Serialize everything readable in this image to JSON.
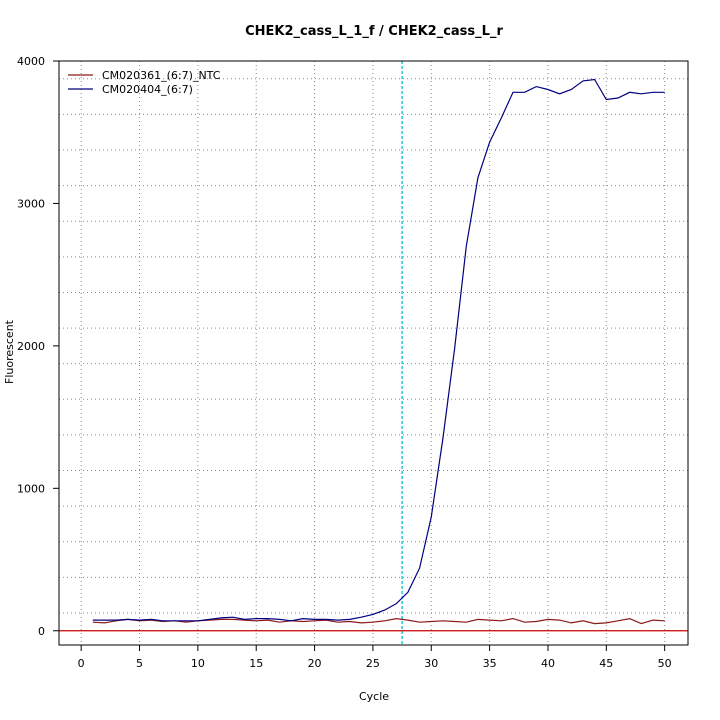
{
  "chart_data": {
    "type": "line",
    "title": "CHEK2_cass_L_1_f / CHEK2_cass_L_r",
    "xlabel": "Cycle",
    "ylabel": "Fluorescent",
    "xlim": [
      -1.9,
      52
    ],
    "ylim": [
      -100,
      4000
    ],
    "xticks": [
      0,
      5,
      10,
      15,
      20,
      25,
      30,
      35,
      40,
      45,
      50
    ],
    "yticks": [
      0,
      1000,
      2000,
      3000,
      4000
    ],
    "x_grid": [
      0,
      5,
      10,
      15,
      20,
      25,
      30,
      35,
      40,
      45,
      50
    ],
    "y_grid": [
      125,
      375,
      625,
      875,
      1125,
      1375,
      1625,
      1875,
      2125,
      2375,
      2625,
      2875,
      3125,
      3375,
      3625,
      3875
    ],
    "grid": true,
    "legend_position": "top-left",
    "threshold_y": 0,
    "threshold_color": "#cc0000",
    "cycle_marker_x": 27.5,
    "cycle_marker_color": "#00bcd4",
    "x": [
      1,
      2,
      3,
      4,
      5,
      6,
      7,
      8,
      9,
      10,
      11,
      12,
      13,
      14,
      15,
      16,
      17,
      18,
      19,
      20,
      21,
      22,
      23,
      24,
      25,
      26,
      27,
      28,
      29,
      30,
      31,
      32,
      33,
      34,
      35,
      36,
      37,
      38,
      39,
      40,
      41,
      42,
      43,
      44,
      45,
      46,
      47,
      48,
      49,
      50
    ],
    "series": [
      {
        "name": "CM020361_(6:7)_NTC",
        "color": "#8b1a1a",
        "values": [
          60,
          55,
          70,
          80,
          70,
          75,
          65,
          70,
          60,
          70,
          75,
          80,
          80,
          75,
          70,
          75,
          60,
          70,
          65,
          70,
          75,
          60,
          65,
          55,
          60,
          70,
          85,
          75,
          60,
          65,
          70,
          65,
          60,
          80,
          75,
          70,
          85,
          60,
          65,
          80,
          75,
          55,
          70,
          50,
          55,
          70,
          85,
          50,
          75,
          70
        ]
      },
      {
        "name": "CM020404_(6:7)",
        "color": "#000080",
        "values": [
          75,
          75,
          75,
          80,
          75,
          80,
          70,
          70,
          70,
          70,
          80,
          90,
          95,
          80,
          85,
          85,
          80,
          70,
          85,
          80,
          80,
          75,
          80,
          95,
          115,
          145,
          190,
          270,
          440,
          800,
          1350,
          1980,
          2700,
          3180,
          3430,
          3600,
          3780,
          3780,
          3820,
          3800,
          3770,
          3800,
          3860,
          3870,
          3730,
          3740,
          3780,
          3770,
          3780,
          3780
        ]
      }
    ]
  }
}
